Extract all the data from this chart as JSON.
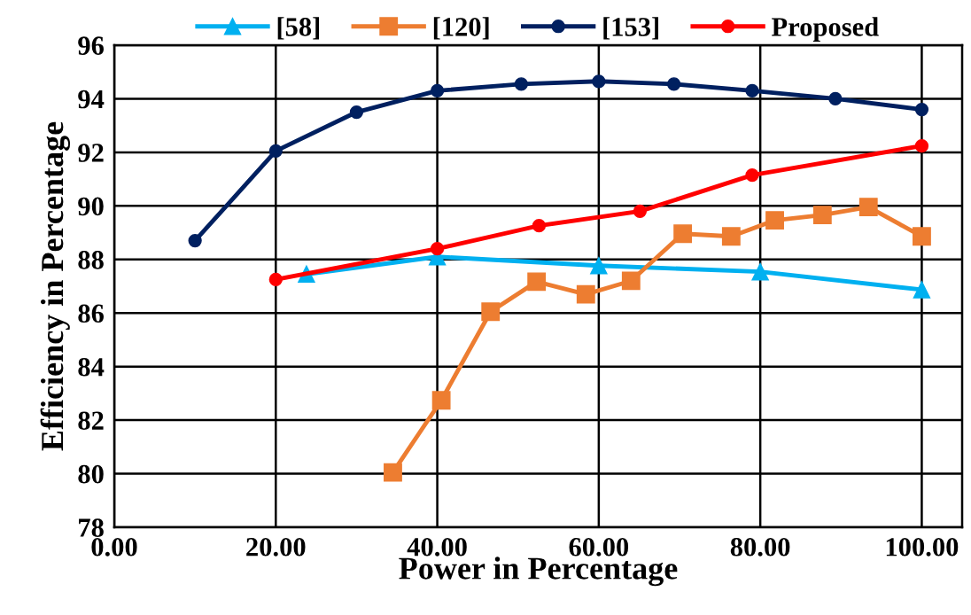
{
  "chart_data": {
    "type": "line",
    "xlabel": "Power in Percentage",
    "ylabel": "Efficiency in Percentage",
    "xlim": [
      0,
      105
    ],
    "xticks": [
      {
        "value": 0,
        "label": "0.00"
      },
      {
        "value": 20,
        "label": "20.00"
      },
      {
        "value": 40,
        "label": "40.00"
      },
      {
        "value": 60,
        "label": "60.00"
      },
      {
        "value": 80,
        "label": "80.00"
      },
      {
        "value": 100,
        "label": "100.00"
      }
    ],
    "ylim": [
      78,
      96
    ],
    "yticks": [
      78,
      80,
      82,
      84,
      86,
      88,
      90,
      92,
      94,
      96
    ],
    "grid": true,
    "legend": "top",
    "line_style": "solid",
    "series": [
      {
        "name": "[58]",
        "color": "#00b0f0",
        "marker": "triangle",
        "x": [
          23.8,
          40,
          60,
          80,
          100
        ],
        "values": [
          87.45,
          88.1,
          87.77,
          87.54,
          86.87
        ]
      },
      {
        "name": "[120]",
        "color": "#ed7d31",
        "marker": "square",
        "x": [
          34.5,
          40.5,
          46.6,
          52.3,
          58.4,
          64,
          70.4,
          76.4,
          81.8,
          87.7,
          93.4,
          100
        ],
        "values": [
          80.05,
          82.74,
          86.05,
          87.17,
          86.7,
          87.2,
          88.96,
          88.86,
          89.46,
          89.66,
          89.96,
          88.86
        ]
      },
      {
        "name": "[153]",
        "color": "#002060",
        "marker": "circle",
        "x": [
          10,
          20,
          30,
          40,
          50.4,
          60,
          69.3,
          79,
          89.3,
          100
        ],
        "values": [
          88.7,
          92.05,
          93.5,
          94.3,
          94.55,
          94.65,
          94.55,
          94.3,
          94.0,
          93.6
        ]
      },
      {
        "name": "Proposed",
        "color": "#ff0000",
        "marker": "circle",
        "x": [
          20,
          40,
          52.6,
          65.1,
          79,
          100
        ],
        "values": [
          87.25,
          88.4,
          89.26,
          89.8,
          91.15,
          92.24
        ]
      }
    ]
  }
}
